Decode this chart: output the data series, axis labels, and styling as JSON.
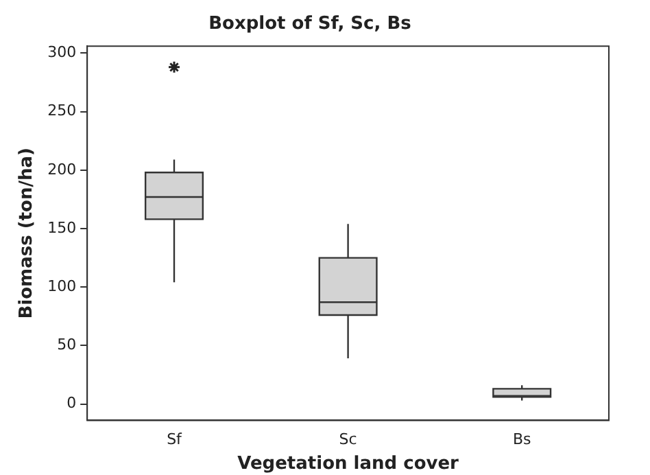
{
  "chart_data": {
    "type": "box",
    "title": "Boxplot of Sf, Sc, Bs",
    "xlabel": "Vegetation land cover",
    "ylabel": "Biomass (ton/ha)",
    "categories": [
      "Sf",
      "Sc",
      "Bs"
    ],
    "color": "#d3d3d3",
    "boxes": [
      {
        "low": 104,
        "q1": 158,
        "median": 177,
        "q3": 198,
        "high": 209,
        "outliers": [
          288
        ]
      },
      {
        "low": 39,
        "q1": 76,
        "median": 87,
        "q3": 125,
        "high": 154
      },
      {
        "low": 3,
        "q1": 6,
        "median": 7,
        "q3": 13,
        "high": 16
      }
    ],
    "ylim": [
      -14,
      306
    ],
    "yticks": [
      0,
      50,
      100,
      150,
      200,
      250,
      300
    ],
    "grid": false,
    "legend": false
  }
}
